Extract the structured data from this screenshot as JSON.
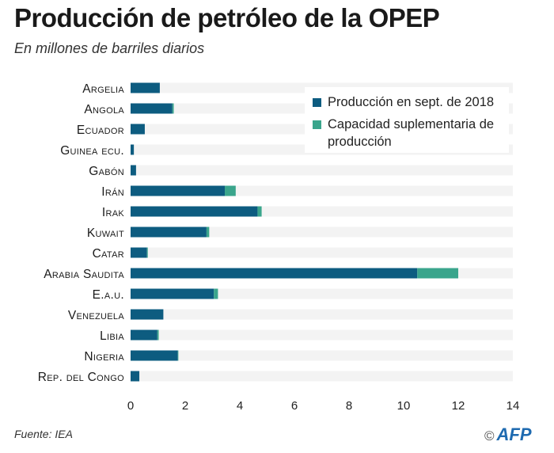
{
  "header": {
    "title": "Producción de petróleo de la OPEP",
    "subtitle": "En millones de barriles diarios"
  },
  "footer": {
    "source": "Fuente: IEA",
    "copyright": "©",
    "logo": "AFP"
  },
  "colors": {
    "production": "#0d5c80",
    "spare": "#3aa58c",
    "track": "#f3f3f3"
  },
  "chart_data": {
    "type": "bar",
    "orientation": "horizontal",
    "stacked": true,
    "title": "Producción de petróleo de la OPEP",
    "subtitle": "En millones de barriles diarios",
    "xlabel": "",
    "ylabel": "",
    "xlim": [
      0,
      14
    ],
    "x_ticks": [
      "0",
      "2",
      "4",
      "6",
      "8",
      "10",
      "12",
      "14"
    ],
    "x_tick_values": [
      0,
      2,
      4,
      6,
      8,
      10,
      12,
      14
    ],
    "legend_position": "top-right",
    "categories": [
      "Argelia",
      "Angola",
      "Ecuador",
      "Guinea ecu.",
      "Gabón",
      "Irán",
      "Irak",
      "Kuwait",
      "Catar",
      "Arabia Saudita",
      "E.a.u.",
      "Venezuela",
      "Libia",
      "Nigeria",
      "Rep. del Congo"
    ],
    "series": [
      {
        "name": "Producción en sept. de 2018",
        "values": [
          1.07,
          1.53,
          0.52,
          0.12,
          0.2,
          3.45,
          4.65,
          2.78,
          0.6,
          10.5,
          3.05,
          1.2,
          0.98,
          1.73,
          0.32
        ]
      },
      {
        "name": "Capacidad suplementaria de producción",
        "values": [
          0.0,
          0.05,
          0.0,
          0.0,
          0.0,
          0.4,
          0.15,
          0.1,
          0.03,
          1.5,
          0.15,
          0.0,
          0.05,
          0.02,
          0.0
        ]
      }
    ]
  },
  "legend": {
    "items": [
      {
        "label": "Producción en sept. de 2018"
      },
      {
        "label": "Capacidad suplementaria de producción"
      }
    ]
  }
}
